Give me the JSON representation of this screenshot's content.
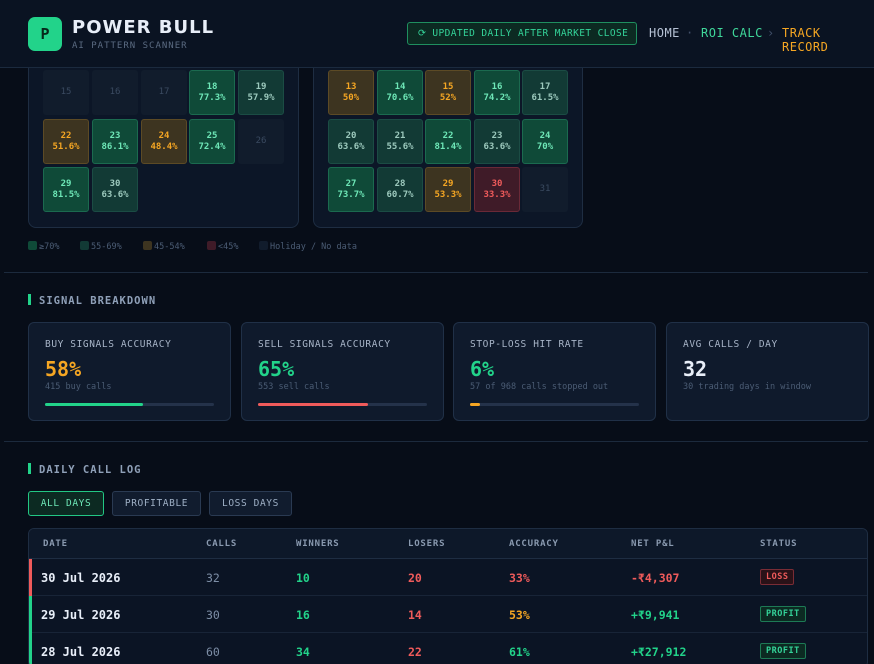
{
  "header": {
    "logo_letter": "P",
    "brand": "POWER BULL",
    "tagline": "AI PATTERN SCANNER",
    "update_notice": "UPDATED DAILY AFTER MARKET CLOSE",
    "nav": {
      "home": "HOME",
      "sep1": "·",
      "roi": "ROI CALC",
      "sep2": "›",
      "track": "TRACK RECORD"
    }
  },
  "calendar_left": [
    {
      "day": "15",
      "pct": "",
      "tone": "empty"
    },
    {
      "day": "16",
      "pct": "",
      "tone": "empty"
    },
    {
      "day": "17",
      "pct": "",
      "tone": "empty"
    },
    {
      "day": "18",
      "pct": "77.3%",
      "tone": "g"
    },
    {
      "day": "19",
      "pct": "57.9%",
      "tone": "m"
    },
    {
      "day": "22",
      "pct": "51.6%",
      "tone": "o"
    },
    {
      "day": "23",
      "pct": "86.1%",
      "tone": "g"
    },
    {
      "day": "24",
      "pct": "48.4%",
      "tone": "o"
    },
    {
      "day": "25",
      "pct": "72.4%",
      "tone": "g"
    },
    {
      "day": "26",
      "pct": "",
      "tone": "empty"
    },
    {
      "day": "29",
      "pct": "81.5%",
      "tone": "g"
    },
    {
      "day": "30",
      "pct": "63.6%",
      "tone": "m"
    }
  ],
  "calendar_right": [
    {
      "day": "13",
      "pct": "50%",
      "tone": "o"
    },
    {
      "day": "14",
      "pct": "70.6%",
      "tone": "g"
    },
    {
      "day": "15",
      "pct": "52%",
      "tone": "o"
    },
    {
      "day": "16",
      "pct": "74.2%",
      "tone": "g"
    },
    {
      "day": "17",
      "pct": "61.5%",
      "tone": "m"
    },
    {
      "day": "20",
      "pct": "63.6%",
      "tone": "m"
    },
    {
      "day": "21",
      "pct": "55.6%",
      "tone": "m"
    },
    {
      "day": "22",
      "pct": "81.4%",
      "tone": "g"
    },
    {
      "day": "23",
      "pct": "63.6%",
      "tone": "m"
    },
    {
      "day": "24",
      "pct": "70%",
      "tone": "g"
    },
    {
      "day": "27",
      "pct": "73.7%",
      "tone": "g"
    },
    {
      "day": "28",
      "pct": "60.7%",
      "tone": "m"
    },
    {
      "day": "29",
      "pct": "53.3%",
      "tone": "o"
    },
    {
      "day": "30",
      "pct": "33.3%",
      "tone": "r"
    },
    {
      "day": "31",
      "pct": "",
      "tone": "empty"
    }
  ],
  "legend": [
    {
      "label": "≥70%",
      "color": "#0f4a38"
    },
    {
      "label": "55-69%",
      "color": "#123a35"
    },
    {
      "label": "45-54%",
      "color": "#3d3420"
    },
    {
      "label": "<45%",
      "color": "#3f1b28"
    },
    {
      "label": "Holiday / No data",
      "color": "#111c2c"
    }
  ],
  "signal_breakdown": {
    "title": "SIGNAL BREAKDOWN",
    "cards": [
      {
        "label": "BUY SIGNALS ACCURACY",
        "value": "58%",
        "sub": "415 buy calls",
        "color": "#f5a623",
        "bar_color": "#22d38a",
        "progress": 0.58
      },
      {
        "label": "SELL SIGNALS ACCURACY",
        "value": "65%",
        "sub": "553 sell calls",
        "color": "#22d38a",
        "bar_color": "#f05b5b",
        "progress": 0.65
      },
      {
        "label": "STOP-LOSS HIT RATE",
        "value": "6%",
        "sub": "57 of 968 calls stopped out",
        "color": "#22d38a",
        "bar_color": "#f5a623",
        "progress": 0.06
      },
      {
        "label": "AVG CALLS / DAY",
        "value": "32",
        "sub": "30 trading days in window",
        "color": "#e8eef8",
        "bar_color": "",
        "progress": null
      }
    ]
  },
  "call_log": {
    "title": "DAILY CALL LOG",
    "filters": [
      "ALL DAYS",
      "PROFITABLE",
      "LOSS DAYS"
    ],
    "columns": [
      "DATE",
      "CALLS",
      "WINNERS",
      "LOSERS",
      "ACCURACY",
      "NET P&L",
      "STATUS"
    ],
    "rows": [
      {
        "date": "30 Jul 2026",
        "calls": "32",
        "winners": "10",
        "losers": "20",
        "accuracy": "33%",
        "pnl": "-₹4,307",
        "status": "LOSS",
        "tone": "loss",
        "acc_color": "#f05b5b",
        "pnl_color": "#f05b5b",
        "edge": "#f05b5b"
      },
      {
        "date": "29 Jul 2026",
        "calls": "30",
        "winners": "16",
        "losers": "14",
        "accuracy": "53%",
        "pnl": "+₹9,941",
        "status": "PROFIT",
        "tone": "profit",
        "acc_color": "#f5a623",
        "pnl_color": "#22d38a",
        "edge": "#22d38a"
      },
      {
        "date": "28 Jul 2026",
        "calls": "60",
        "winners": "34",
        "losers": "22",
        "accuracy": "61%",
        "pnl": "+₹27,912",
        "status": "PROFIT",
        "tone": "profit",
        "acc_color": "#22d38a",
        "pnl_color": "#22d38a",
        "edge": "#22d38a"
      }
    ]
  }
}
